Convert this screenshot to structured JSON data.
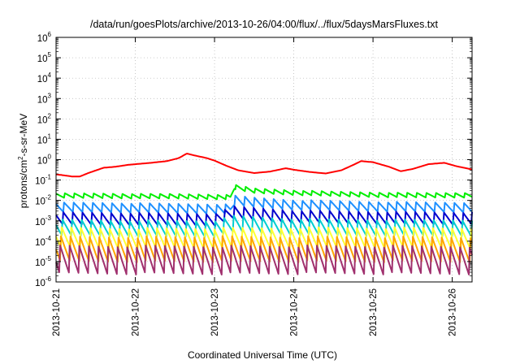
{
  "chart_data": {
    "type": "line",
    "title": "/data/run/goesPlots/archive/2013-10-26/04:00/flux/../flux/5daysMarsFluxes.txt",
    "xlabel": "Coordinated Universal Time (UTC)",
    "ylabel": {
      "base": "protons/cm",
      "sup": "2",
      "tail": "-s-sr-MeV"
    },
    "y_scale": "log",
    "ylim": [
      1e-06,
      1000000.0
    ],
    "y_ticks": [
      {
        "base": "10",
        "exp": "6"
      },
      {
        "base": "10",
        "exp": "5"
      },
      {
        "base": "10",
        "exp": "4"
      },
      {
        "base": "10",
        "exp": "3"
      },
      {
        "base": "10",
        "exp": "2"
      },
      {
        "base": "10",
        "exp": "1"
      },
      {
        "base": "10",
        "exp": "0"
      },
      {
        "base": "10",
        "exp": "-1"
      },
      {
        "base": "10",
        "exp": "-2"
      },
      {
        "base": "10",
        "exp": "-3"
      },
      {
        "base": "10",
        "exp": "-4"
      },
      {
        "base": "10",
        "exp": "-5"
      },
      {
        "base": "10",
        "exp": "-6"
      }
    ],
    "x_ticks": [
      "2013-10-21",
      "2013-10-22",
      "2013-10-23",
      "2013-10-24",
      "2013-10-25",
      "2013-10-26"
    ],
    "xlim_days": [
      0.0,
      5.25
    ],
    "grid": true,
    "series": [
      {
        "color": "#ff0000",
        "values": [
          [
            0.0,
            0.19
          ],
          [
            0.1,
            0.17
          ],
          [
            0.2,
            0.15
          ],
          [
            0.3,
            0.15
          ],
          [
            0.42,
            0.23
          ],
          [
            0.6,
            0.4
          ],
          [
            0.75,
            0.45
          ],
          [
            0.9,
            0.55
          ],
          [
            1.0,
            0.6
          ],
          [
            1.2,
            0.7
          ],
          [
            1.4,
            0.85
          ],
          [
            1.55,
            1.2
          ],
          [
            1.65,
            2.0
          ],
          [
            1.75,
            1.6
          ],
          [
            1.9,
            1.2
          ],
          [
            2.0,
            0.9
          ],
          [
            2.15,
            0.5
          ],
          [
            2.3,
            0.3
          ],
          [
            2.5,
            0.22
          ],
          [
            2.7,
            0.26
          ],
          [
            2.9,
            0.38
          ],
          [
            3.0,
            0.32
          ],
          [
            3.2,
            0.25
          ],
          [
            3.4,
            0.21
          ],
          [
            3.6,
            0.3
          ],
          [
            3.75,
            0.55
          ],
          [
            3.85,
            0.85
          ],
          [
            4.0,
            0.75
          ],
          [
            4.2,
            0.45
          ],
          [
            4.35,
            0.27
          ],
          [
            4.5,
            0.35
          ],
          [
            4.7,
            0.6
          ],
          [
            4.9,
            0.7
          ],
          [
            5.05,
            0.48
          ],
          [
            5.25,
            0.33
          ]
        ]
      },
      {
        "color": "#00ee00",
        "values": [
          [
            0.0,
            0.017
          ],
          [
            0.5,
            0.017
          ],
          [
            1.0,
            0.016
          ],
          [
            1.5,
            0.016
          ],
          [
            2.0,
            0.015
          ],
          [
            2.2,
            0.014
          ],
          [
            2.25,
            0.045
          ],
          [
            2.5,
            0.03
          ],
          [
            3.0,
            0.024
          ],
          [
            3.5,
            0.021
          ],
          [
            4.0,
            0.019
          ],
          [
            4.5,
            0.018
          ],
          [
            5.0,
            0.018
          ],
          [
            5.25,
            0.018
          ]
        ]
      },
      {
        "color": "#1e90ff",
        "values": [
          [
            0.0,
            0.0045
          ],
          [
            0.5,
            0.0045
          ],
          [
            1.0,
            0.0042
          ],
          [
            1.5,
            0.004
          ],
          [
            2.0,
            0.0038
          ],
          [
            2.2,
            0.0036
          ],
          [
            2.25,
            0.01
          ],
          [
            2.5,
            0.008
          ],
          [
            3.0,
            0.006
          ],
          [
            3.5,
            0.0055
          ],
          [
            4.0,
            0.005
          ],
          [
            4.5,
            0.0048
          ],
          [
            5.0,
            0.0046
          ],
          [
            5.25,
            0.0045
          ]
        ]
      },
      {
        "color": "#0000cd",
        "values": [
          [
            0.0,
            0.0013
          ],
          [
            1.0,
            0.0012
          ],
          [
            2.0,
            0.0011
          ],
          [
            2.25,
            0.0025
          ],
          [
            3.0,
            0.0016
          ],
          [
            4.0,
            0.0014
          ],
          [
            5.0,
            0.0013
          ],
          [
            5.25,
            0.0013
          ]
        ]
      },
      {
        "color": "#00ced1",
        "values": [
          [
            0.0,
            0.00045
          ],
          [
            1.0,
            0.00042
          ],
          [
            2.0,
            0.0004
          ],
          [
            2.25,
            0.0007
          ],
          [
            3.0,
            0.0005
          ],
          [
            4.0,
            0.00045
          ],
          [
            5.25,
            0.00045
          ]
        ]
      },
      {
        "color": "#ffff33",
        "values": [
          [
            0.0,
            0.00014
          ],
          [
            1.0,
            0.00013
          ],
          [
            2.0,
            0.00013
          ],
          [
            3.0,
            0.00014
          ],
          [
            4.0,
            0.00014
          ],
          [
            5.25,
            0.00014
          ]
        ]
      },
      {
        "color": "#ffa500",
        "values": [
          [
            0.0,
            4e-05
          ],
          [
            1.0,
            4e-05
          ],
          [
            2.0,
            4e-05
          ],
          [
            3.0,
            4e-05
          ],
          [
            4.0,
            4e-05
          ],
          [
            5.25,
            4e-05
          ]
        ]
      },
      {
        "color": "#a0306e",
        "values": [
          [
            0.0,
            1.2e-05
          ],
          [
            1.0,
            1.2e-05
          ],
          [
            2.0,
            1.2e-05
          ],
          [
            3.0,
            1.2e-05
          ],
          [
            4.0,
            1.2e-05
          ],
          [
            5.25,
            1.2e-05
          ]
        ]
      }
    ]
  }
}
